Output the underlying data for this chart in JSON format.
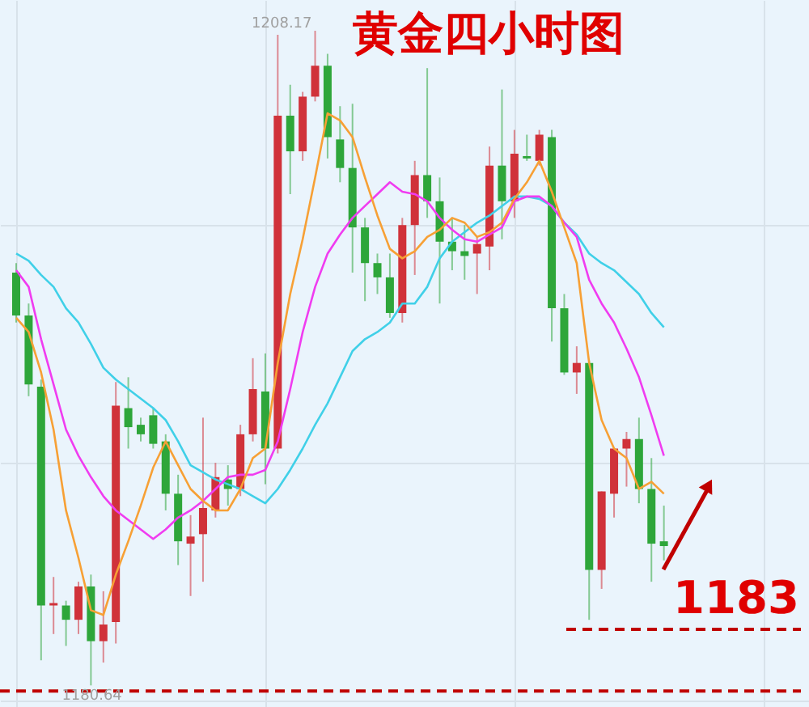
{
  "chart_data": {
    "type": "candlestick",
    "title": "黄金四小时图",
    "categories": [
      null,
      null,
      null,
      null,
      null,
      null,
      null,
      null,
      null,
      null,
      null,
      null,
      null,
      null,
      null,
      null,
      null,
      null,
      null,
      null,
      null,
      null,
      null,
      null,
      null,
      null,
      null,
      null,
      null,
      null,
      null,
      null,
      null,
      null,
      null,
      null,
      null,
      null,
      null,
      null,
      null,
      null,
      null,
      null,
      null,
      null,
      null,
      null,
      null,
      null,
      null,
      null,
      null
    ],
    "ohlc": [
      [
        1198.0,
        1198.4,
        1195.9,
        1196.2
      ],
      [
        1196.2,
        1196.7,
        1192.8,
        1193.3
      ],
      [
        1193.2,
        1193.5,
        1181.7,
        1184.0
      ],
      [
        1184.0,
        1185.2,
        1182.8,
        1184.1
      ],
      [
        1184.0,
        1184.2,
        1182.3,
        1183.4
      ],
      [
        1183.4,
        1185.0,
        1182.8,
        1184.8
      ],
      [
        1184.8,
        1185.3,
        1180.64,
        1182.5
      ],
      [
        1182.5,
        1184.6,
        1181.6,
        1183.2
      ],
      [
        1183.3,
        1193.4,
        1182.4,
        1192.4
      ],
      [
        1192.3,
        1193.6,
        1190.6,
        1191.5
      ],
      [
        1191.6,
        1191.9,
        1190.9,
        1191.2
      ],
      [
        1192.0,
        1192.3,
        1190.6,
        1190.8
      ],
      [
        1190.9,
        1191.2,
        1188.0,
        1188.7
      ],
      [
        1188.7,
        1189.5,
        1185.7,
        1186.7
      ],
      [
        1186.6,
        1187.8,
        1184.4,
        1186.9
      ],
      [
        1187.0,
        1191.9,
        1185.0,
        1188.1
      ],
      [
        1188.0,
        1190.0,
        1187.7,
        1189.4
      ],
      [
        1189.3,
        1189.9,
        1188.2,
        1188.9
      ],
      [
        1188.9,
        1191.6,
        1188.6,
        1191.2
      ],
      [
        1191.2,
        1194.4,
        1190.9,
        1193.1
      ],
      [
        1193.0,
        1194.6,
        1189.1,
        1190.6
      ],
      [
        1190.6,
        1208.0,
        1190.4,
        1204.6
      ],
      [
        1204.6,
        1205.9,
        1201.3,
        1203.1
      ],
      [
        1203.1,
        1205.6,
        1202.7,
        1205.4
      ],
      [
        1205.4,
        1208.17,
        1205.2,
        1206.7
      ],
      [
        1206.7,
        1207.2,
        1202.8,
        1203.7
      ],
      [
        1203.6,
        1205.0,
        1201.8,
        1202.4
      ],
      [
        1202.4,
        1205.1,
        1198.0,
        1199.9
      ],
      [
        1199.9,
        1200.3,
        1196.8,
        1198.4
      ],
      [
        1198.4,
        1198.8,
        1197.1,
        1197.8
      ],
      [
        1197.8,
        1198.8,
        1196.1,
        1196.3
      ],
      [
        1196.3,
        1200.3,
        1195.9,
        1200.0
      ],
      [
        1200.0,
        1202.7,
        1197.9,
        1202.1
      ],
      [
        1202.1,
        1206.6,
        1200.3,
        1201.0
      ],
      [
        1201.0,
        1202.0,
        1196.7,
        1199.3
      ],
      [
        1199.3,
        1200.3,
        1198.1,
        1198.9
      ],
      [
        1198.9,
        1200.0,
        1197.7,
        1198.7
      ],
      [
        1198.8,
        1199.5,
        1197.1,
        1199.2
      ],
      [
        1199.1,
        1203.3,
        1198.1,
        1202.5
      ],
      [
        1202.5,
        1205.7,
        1199.4,
        1201.0
      ],
      [
        1201.0,
        1204.0,
        1200.3,
        1203.0
      ],
      [
        1202.9,
        1203.8,
        1202.7,
        1202.8
      ],
      [
        1202.7,
        1204.0,
        1202.5,
        1203.8
      ],
      [
        1203.7,
        1204.0,
        1195.1,
        1196.5
      ],
      [
        1196.5,
        1197.1,
        1193.7,
        1193.8
      ],
      [
        1193.8,
        1194.9,
        1192.9,
        1194.2
      ],
      [
        1194.2,
        1194.3,
        1183.4,
        1185.5
      ],
      [
        1185.5,
        1188.8,
        1184.7,
        1188.8
      ],
      [
        1188.7,
        1190.6,
        1187.7,
        1190.6
      ],
      [
        1190.6,
        1191.3,
        1189.0,
        1191.0
      ],
      [
        1191.0,
        1191.9,
        1188.3,
        1188.9
      ],
      [
        1188.9,
        1190.2,
        1185.0,
        1186.6
      ],
      [
        1186.7,
        1188.2,
        1185.9,
        1186.5
      ]
    ],
    "colors": [
      "#2ea63a",
      "#2ea63a",
      "#2ea63a",
      "#d0323a",
      "#2ea63a",
      "#d0323a",
      "#2ea63a",
      "#d0323a",
      "#d0323a",
      "#2ea63a",
      "#2ea63a",
      "#2ea63a",
      "#2ea63a",
      "#2ea63a",
      "#d0323a",
      "#d0323a",
      "#d0323a",
      "#2ea63a",
      "#d0323a",
      "#d0323a",
      "#2ea63a",
      "#d0323a",
      "#2ea63a",
      "#d0323a",
      "#d0323a",
      "#2ea63a",
      "#2ea63a",
      "#2ea63a",
      "#2ea63a",
      "#2ea63a",
      "#2ea63a",
      "#d0323a",
      "#d0323a",
      "#2ea63a",
      "#2ea63a",
      "#2ea63a",
      "#2ea63a",
      "#d0323a",
      "#d0323a",
      "#2ea63a",
      "#d0323a",
      "#2ea63a",
      "#d0323a",
      "#2ea63a",
      "#2ea63a",
      "#d0323a",
      "#2ea63a",
      "#d0323a",
      "#d0323a",
      "#d0323a",
      "#2ea63a",
      "#2ea63a",
      "#2ea63a"
    ],
    "series": [
      {
        "type": "line",
        "color": "#40d0e8",
        "values": [
          1198.8,
          1198.5,
          1197.9,
          1197.4,
          1196.5,
          1195.9,
          1195.0,
          1194.0,
          1193.5,
          1193.1,
          1192.7,
          1192.3,
          1191.8,
          1190.9,
          1189.9,
          1189.6,
          1189.3,
          1189.1,
          1188.9,
          1188.6,
          1188.3,
          1188.9,
          1189.7,
          1190.6,
          1191.6,
          1192.5,
          1193.6,
          1194.7,
          1195.2,
          1195.5,
          1195.9,
          1196.7,
          1196.7,
          1197.4,
          1198.6,
          1199.3,
          1199.7,
          1200.1,
          1200.4,
          1200.8,
          1201.2,
          1201.2,
          1201.1,
          1200.8,
          1200.1,
          1199.6,
          1198.8,
          1198.4,
          1198.1,
          1197.6,
          1197.1,
          1196.3,
          1195.7
        ]
      },
      {
        "type": "line",
        "color": "#f03cf0",
        "values": [
          1198.1,
          1197.4,
          1195.2,
          1193.3,
          1191.4,
          1190.3,
          1189.4,
          1188.6,
          1188.0,
          1187.6,
          1187.2,
          1186.8,
          1187.2,
          1187.7,
          1188.0,
          1188.4,
          1188.9,
          1189.4,
          1189.5,
          1189.5,
          1189.7,
          1190.9,
          1193.1,
          1195.5,
          1197.4,
          1198.8,
          1199.6,
          1200.3,
          1200.8,
          1201.3,
          1201.8,
          1201.4,
          1201.3,
          1201.0,
          1200.3,
          1199.8,
          1199.4,
          1199.3,
          1199.6,
          1199.9,
          1201.0,
          1201.2,
          1201.2,
          1200.8,
          1200.1,
          1199.5,
          1197.7,
          1196.7,
          1195.9,
          1194.8,
          1193.6,
          1192.0,
          1190.3
        ]
      },
      {
        "type": "line",
        "color": "#f7a035",
        "values": [
          1196.1,
          1195.5,
          1193.8,
          1191.4,
          1188.0,
          1186.0,
          1183.8,
          1183.6,
          1185.3,
          1186.7,
          1188.2,
          1189.8,
          1190.9,
          1189.9,
          1188.9,
          1188.4,
          1188.0,
          1188.0,
          1188.9,
          1190.2,
          1190.6,
          1194.2,
          1197.1,
          1199.4,
          1202.0,
          1204.7,
          1204.4,
          1203.7,
          1202.0,
          1200.4,
          1199.0,
          1198.6,
          1198.9,
          1199.5,
          1199.8,
          1200.3,
          1200.1,
          1199.5,
          1199.7,
          1200.1,
          1201.1,
          1201.8,
          1202.7,
          1201.4,
          1199.9,
          1198.4,
          1194.2,
          1191.8,
          1190.6,
          1190.2,
          1188.9,
          1189.2,
          1188.7
        ]
      }
    ],
    "annotations": [
      {
        "text": "1208.17",
        "y": 1208.17
      },
      {
        "text": "1180.64",
        "y": 1180.64
      }
    ],
    "ref_lines": [
      {
        "axis": "y",
        "value": 1183,
        "label": "1183",
        "color": "#c00000",
        "line_style": "dashed"
      },
      {
        "axis": "y",
        "value": 1180.4,
        "color": "#c00000",
        "line_style": "dashed"
      }
    ],
    "grid": true,
    "tick_labels": false
  }
}
